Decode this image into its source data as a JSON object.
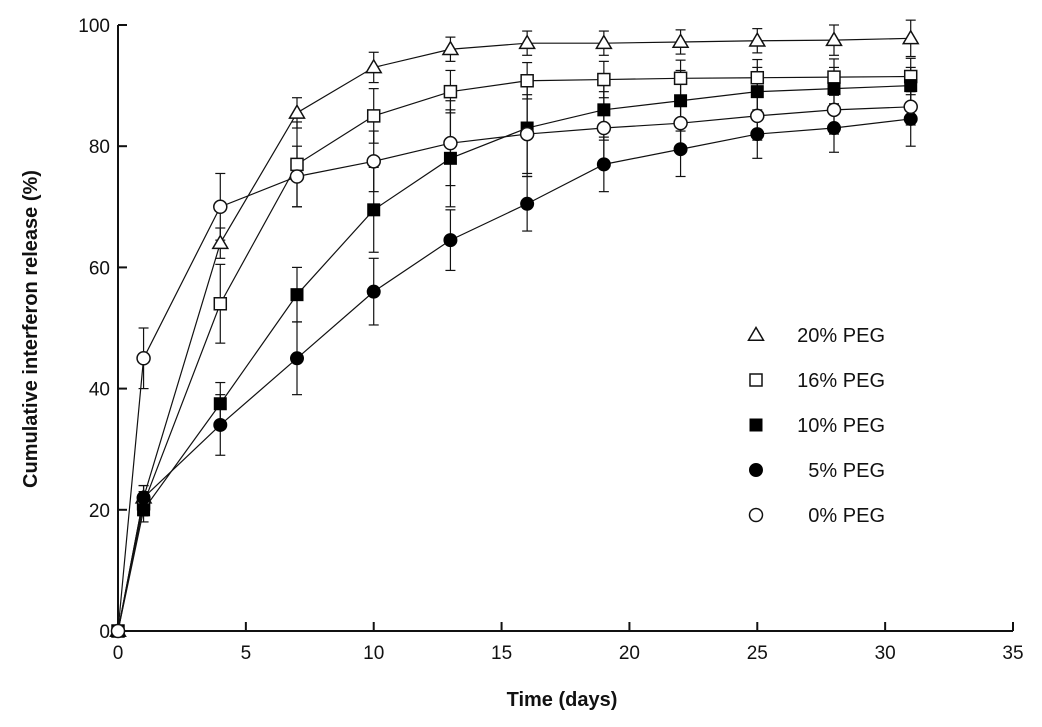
{
  "chart_data": {
    "type": "line",
    "title": "",
    "xlabel": "Time (days)",
    "ylabel": "Cumulative interferon release (%)",
    "xlim": [
      0,
      35
    ],
    "ylim": [
      0,
      100
    ],
    "xticks": [
      0,
      5,
      10,
      15,
      20,
      25,
      30,
      35
    ],
    "yticks": [
      0,
      20,
      40,
      60,
      80,
      100
    ],
    "grid": false,
    "legend_position": "right",
    "x": [
      0,
      1,
      4,
      7,
      10,
      13,
      16,
      19,
      22,
      25,
      28,
      31
    ],
    "series": [
      {
        "name": "20% PEG",
        "marker": "triangle-open",
        "values": [
          0,
          22,
          64,
          85.5,
          93,
          96,
          97,
          97,
          97.2,
          97.4,
          97.5,
          97.8
        ],
        "errors": [
          0,
          2,
          2.5,
          2.5,
          2.5,
          2,
          2,
          2,
          2,
          2,
          2.5,
          3
        ]
      },
      {
        "name": "16% PEG",
        "marker": "square-open",
        "values": [
          0,
          21,
          54,
          77,
          85,
          89,
          90.8,
          91,
          91.2,
          91.3,
          91.4,
          91.5
        ],
        "errors": [
          0,
          2,
          6.5,
          7,
          4.5,
          3.5,
          3,
          3,
          3,
          3,
          3,
          3
        ]
      },
      {
        "name": "10% PEG",
        "marker": "square-filled",
        "values": [
          0,
          20,
          37.5,
          55.5,
          69.5,
          78,
          83,
          86,
          87.5,
          89,
          89.5,
          90
        ],
        "errors": [
          0,
          2,
          3.5,
          4.5,
          7,
          8,
          8,
          5,
          5,
          4,
          3.5,
          3
        ]
      },
      {
        "name": "5% PEG",
        "marker": "circle-filled",
        "values": [
          0,
          22,
          34,
          45,
          56,
          64.5,
          70.5,
          77,
          79.5,
          82,
          83,
          84.5
        ],
        "errors": [
          0,
          2,
          5,
          6,
          5.5,
          5,
          4.5,
          4.5,
          4.5,
          4,
          4,
          4.5
        ]
      },
      {
        "name": "0% PEG",
        "marker": "circle-open",
        "values": [
          0,
          45,
          70,
          75,
          77.5,
          80.5,
          82,
          83,
          83.8,
          85,
          86,
          86.5
        ],
        "errors": [
          0,
          5,
          5.5,
          5,
          5,
          7,
          6.5,
          6,
          4.5,
          4,
          4,
          3
        ]
      }
    ]
  }
}
